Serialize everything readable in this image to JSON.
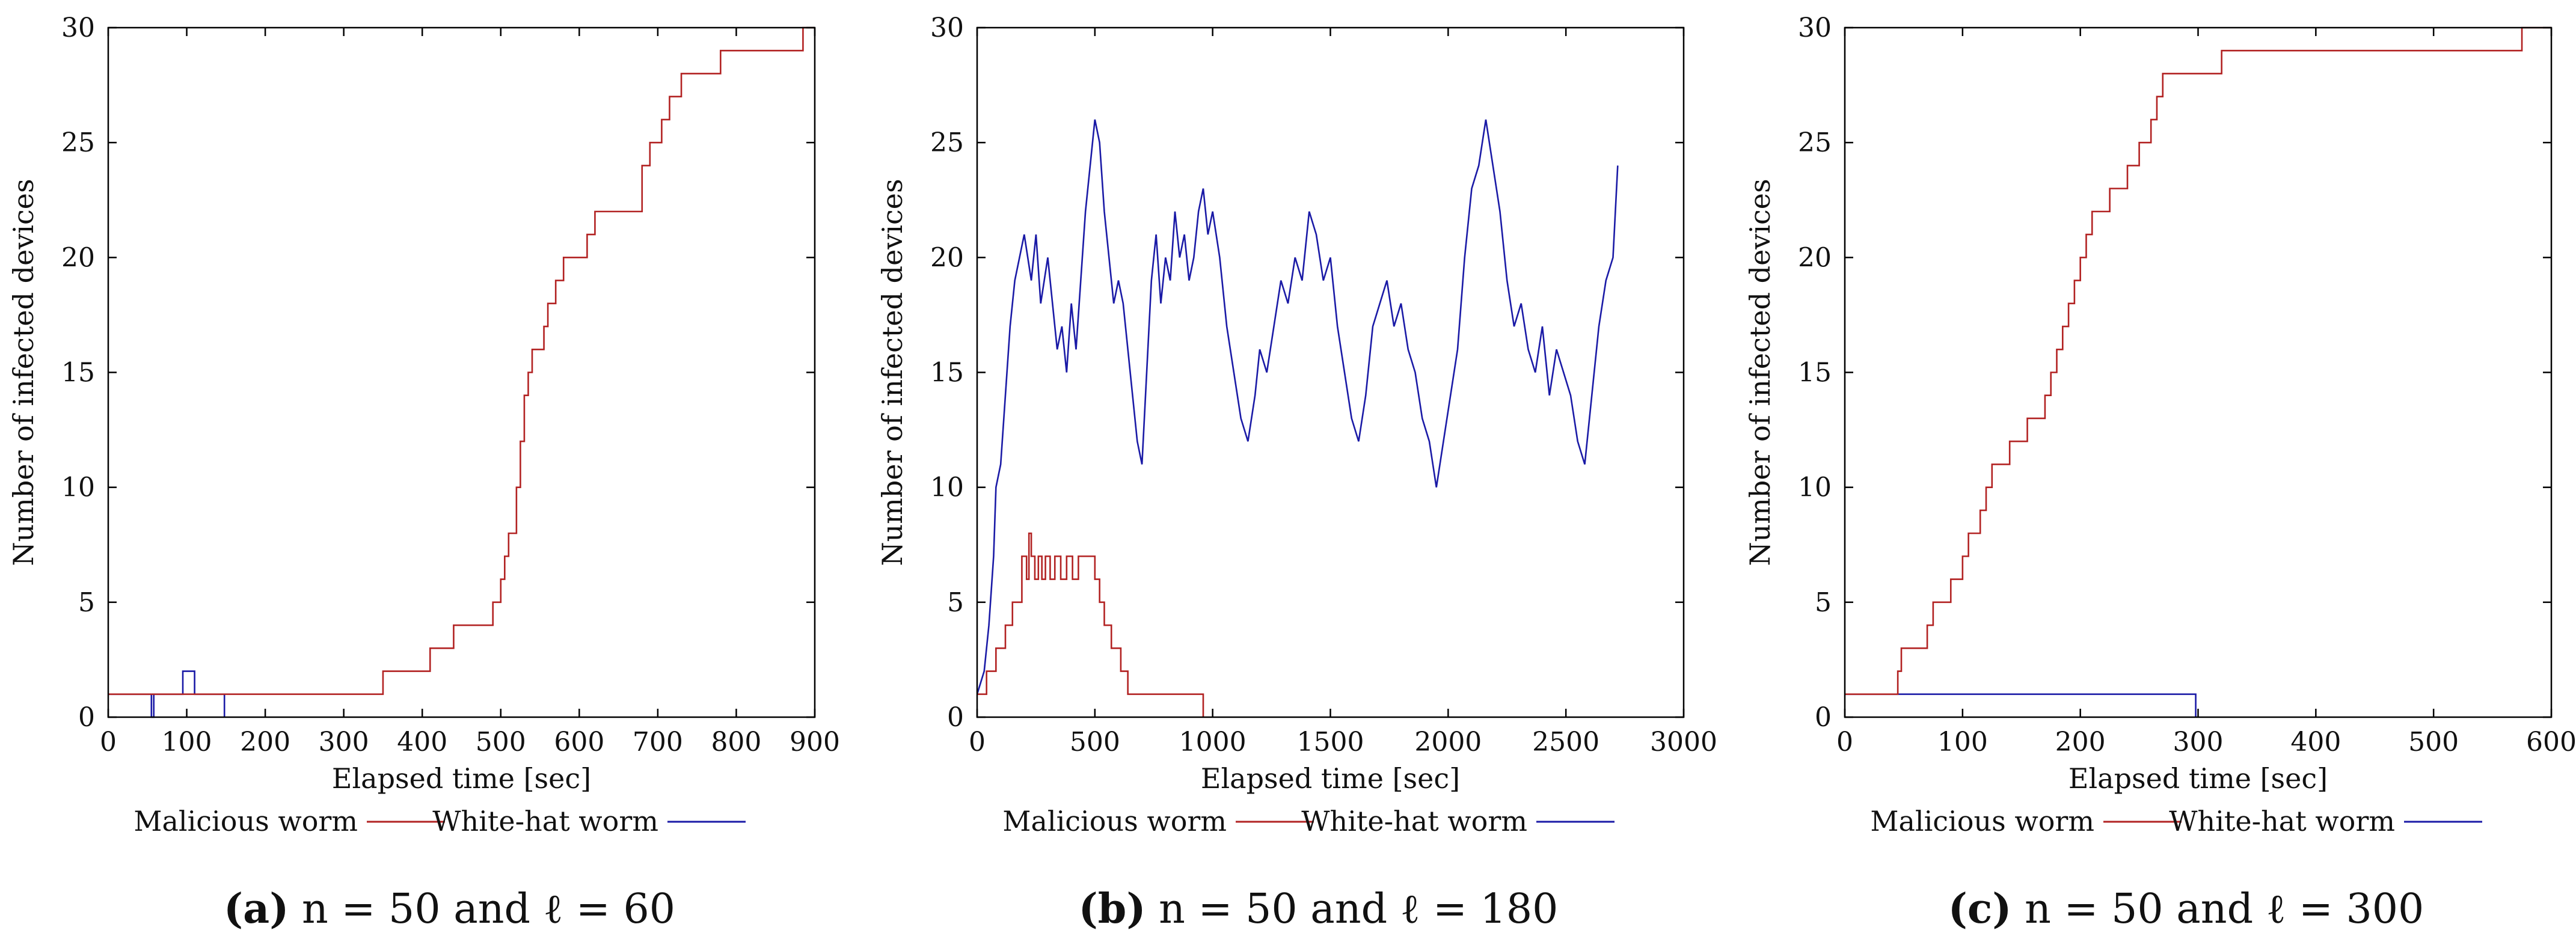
{
  "chart_data": [
    {
      "type": "line",
      "caption": {
        "letter": "(a)",
        "expr": "n = 50 and ℓ = 60"
      },
      "xlabel": "Elapsed time [sec]",
      "ylabel": "Number of infected devices",
      "xlim": [
        0,
        900
      ],
      "ylim": [
        0,
        30
      ],
      "xticks": [
        0,
        100,
        200,
        300,
        400,
        500,
        600,
        700,
        800,
        900
      ],
      "yticks": [
        0,
        5,
        10,
        15,
        20,
        25,
        30
      ],
      "legend_position": "bottom",
      "series": [
        {
          "name": "Malicious worm",
          "color": "#b22222",
          "x": [
            0,
            350,
            350,
            410,
            410,
            440,
            440,
            490,
            490,
            500,
            500,
            505,
            505,
            510,
            510,
            520,
            520,
            525,
            525,
            530,
            530,
            535,
            535,
            540,
            540,
            555,
            555,
            560,
            560,
            570,
            570,
            580,
            580,
            585,
            585,
            590,
            590,
            610,
            610,
            620,
            620,
            680,
            680,
            690,
            690,
            700,
            700,
            705,
            705,
            715,
            715,
            730,
            730,
            745,
            745,
            755,
            755,
            780,
            780,
            885,
            885,
            900
          ],
          "y": [
            1,
            1,
            2,
            2,
            3,
            3,
            4,
            4,
            5,
            5,
            6,
            6,
            7,
            7,
            8,
            8,
            10,
            10,
            12,
            12,
            14,
            14,
            15,
            15,
            16,
            16,
            17,
            17,
            18,
            18,
            19,
            19,
            20,
            20,
            20,
            20,
            20,
            20,
            21,
            21,
            22,
            22,
            24,
            24,
            25,
            25,
            25,
            25,
            26,
            26,
            27,
            27,
            28,
            28,
            28,
            28,
            28,
            28,
            29,
            29,
            30,
            30
          ]
        },
        {
          "name": "White-hat worm",
          "color": "#1a1aa6",
          "x": [
            0,
            55,
            55,
            58,
            58,
            95,
            95,
            110,
            110,
            148,
            148
          ],
          "y": [
            1,
            1,
            0,
            0,
            1,
            1,
            2,
            2,
            1,
            1,
            0
          ]
        }
      ]
    },
    {
      "type": "line",
      "caption": {
        "letter": "(b)",
        "expr": "n = 50 and ℓ = 180"
      },
      "xlabel": "Elapsed time [sec]",
      "ylabel": "Number of infected devices",
      "xlim": [
        0,
        3000
      ],
      "ylim": [
        0,
        30
      ],
      "xticks": [
        0,
        500,
        1000,
        1500,
        2000,
        2500,
        3000
      ],
      "yticks": [
        0,
        5,
        10,
        15,
        20,
        25,
        30
      ],
      "legend_position": "bottom",
      "series": [
        {
          "name": "Malicious worm",
          "color": "#b22222",
          "x": [
            0,
            40,
            40,
            80,
            80,
            120,
            120,
            150,
            150,
            190,
            190,
            210,
            210,
            220,
            220,
            230,
            230,
            245,
            245,
            260,
            260,
            275,
            275,
            290,
            290,
            310,
            310,
            330,
            330,
            355,
            355,
            380,
            380,
            405,
            405,
            430,
            430,
            460,
            460,
            500,
            500,
            520,
            520,
            540,
            540,
            570,
            570,
            610,
            610,
            640,
            640,
            700,
            700,
            960,
            960
          ],
          "y": [
            1,
            1,
            2,
            2,
            3,
            3,
            4,
            4,
            5,
            5,
            7,
            7,
            6,
            6,
            8,
            8,
            7,
            7,
            6,
            6,
            7,
            7,
            6,
            6,
            7,
            7,
            6,
            6,
            7,
            7,
            6,
            6,
            7,
            7,
            6,
            6,
            7,
            7,
            7,
            7,
            6,
            6,
            5,
            5,
            4,
            4,
            3,
            3,
            2,
            2,
            1,
            1,
            1,
            1,
            0
          ]
        },
        {
          "name": "White-hat worm",
          "color": "#1a1aa6",
          "x": [
            0,
            30,
            50,
            70,
            80,
            100,
            120,
            140,
            160,
            180,
            200,
            230,
            250,
            270,
            300,
            320,
            340,
            360,
            380,
            400,
            420,
            440,
            460,
            480,
            500,
            520,
            540,
            560,
            580,
            600,
            620,
            640,
            660,
            680,
            700,
            720,
            740,
            760,
            780,
            800,
            820,
            840,
            860,
            880,
            900,
            920,
            940,
            960,
            980,
            1000,
            1030,
            1060,
            1090,
            1120,
            1150,
            1180,
            1200,
            1230,
            1260,
            1290,
            1320,
            1350,
            1380,
            1410,
            1440,
            1470,
            1500,
            1530,
            1560,
            1590,
            1620,
            1650,
            1680,
            1710,
            1740,
            1770,
            1800,
            1830,
            1860,
            1890,
            1920,
            1950,
            1980,
            2010,
            2040,
            2070,
            2100,
            2130,
            2160,
            2190,
            2220,
            2250,
            2280,
            2310,
            2340,
            2370,
            2400,
            2430,
            2460,
            2490,
            2520,
            2550,
            2580,
            2610,
            2640,
            2670,
            2700,
            2720
          ],
          "y": [
            1,
            2,
            4,
            7,
            10,
            11,
            14,
            17,
            19,
            20,
            21,
            19,
            21,
            18,
            20,
            18,
            16,
            17,
            15,
            18,
            16,
            19,
            22,
            24,
            26,
            25,
            22,
            20,
            18,
            19,
            18,
            16,
            14,
            12,
            11,
            15,
            19,
            21,
            18,
            20,
            19,
            22,
            20,
            21,
            19,
            20,
            22,
            23,
            21,
            22,
            20,
            17,
            15,
            13,
            12,
            14,
            16,
            15,
            17,
            19,
            18,
            20,
            19,
            22,
            21,
            19,
            20,
            17,
            15,
            13,
            12,
            14,
            17,
            18,
            19,
            17,
            18,
            16,
            15,
            13,
            12,
            10,
            12,
            14,
            16,
            20,
            23,
            24,
            26,
            24,
            22,
            19,
            17,
            18,
            16,
            15,
            17,
            14,
            16,
            15,
            14,
            12,
            11,
            14,
            17,
            19,
            20,
            24
          ]
        }
      ]
    },
    {
      "type": "line",
      "caption": {
        "letter": "(c)",
        "expr": "n = 50 and ℓ = 300"
      },
      "xlabel": "Elapsed time [sec]",
      "ylabel": "Number of infected devices",
      "xlim": [
        0,
        600
      ],
      "ylim": [
        0,
        30
      ],
      "xticks": [
        0,
        100,
        200,
        300,
        400,
        500,
        600
      ],
      "yticks": [
        0,
        5,
        10,
        15,
        20,
        25,
        30
      ],
      "legend_position": "bottom",
      "series": [
        {
          "name": "Malicious worm",
          "color": "#b22222",
          "x": [
            0,
            45,
            45,
            48,
            48,
            70,
            70,
            75,
            75,
            90,
            90,
            100,
            100,
            105,
            105,
            115,
            115,
            120,
            120,
            125,
            125,
            130,
            130,
            140,
            140,
            155,
            155,
            170,
            170,
            175,
            175,
            180,
            180,
            185,
            185,
            190,
            190,
            195,
            195,
            200,
            200,
            205,
            205,
            210,
            210,
            215,
            215,
            220,
            220,
            225,
            225,
            230,
            230,
            240,
            240,
            250,
            250,
            260,
            260,
            265,
            265,
            270,
            270,
            320,
            320,
            375,
            375,
            575,
            575,
            600
          ],
          "y": [
            1,
            1,
            2,
            2,
            3,
            3,
            4,
            4,
            5,
            5,
            6,
            6,
            7,
            7,
            8,
            8,
            9,
            9,
            10,
            10,
            11,
            11,
            11,
            11,
            12,
            12,
            13,
            13,
            14,
            14,
            15,
            15,
            16,
            16,
            17,
            17,
            18,
            18,
            19,
            19,
            20,
            20,
            21,
            21,
            22,
            22,
            22,
            22,
            22,
            22,
            23,
            23,
            23,
            23,
            24,
            24,
            25,
            25,
            26,
            26,
            27,
            27,
            28,
            28,
            29,
            29,
            29,
            29,
            30,
            30
          ]
        },
        {
          "name": "White-hat worm",
          "color": "#1a1aa6",
          "x": [
            0,
            298,
            298
          ],
          "y": [
            1,
            1,
            0
          ]
        }
      ]
    }
  ]
}
